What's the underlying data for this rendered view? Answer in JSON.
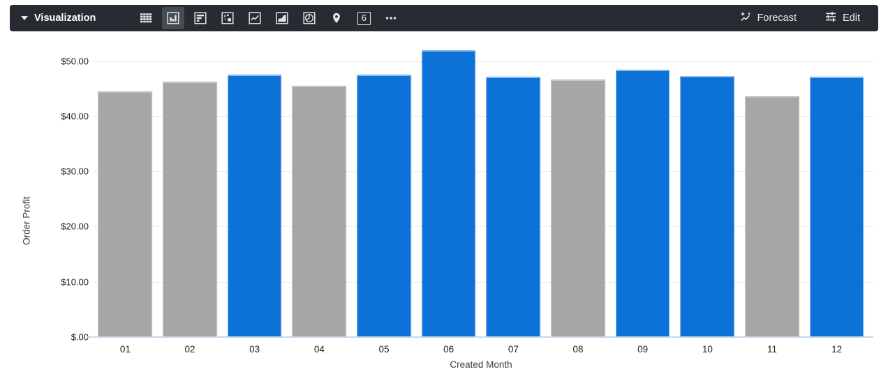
{
  "toolbar": {
    "title": "Visualization",
    "icons": [
      {
        "name": "table-chart-icon",
        "selected": false
      },
      {
        "name": "column-chart-icon",
        "selected": true
      },
      {
        "name": "horizontal-bar-chart-icon",
        "selected": false
      },
      {
        "name": "scatter-chart-icon",
        "selected": false
      },
      {
        "name": "line-chart-icon",
        "selected": false
      },
      {
        "name": "area-chart-icon",
        "selected": false
      },
      {
        "name": "pie-chart-icon",
        "selected": false
      },
      {
        "name": "map-pin-icon",
        "selected": false
      },
      {
        "name": "single-value-icon",
        "selected": false
      },
      {
        "name": "more-options-icon",
        "selected": false
      }
    ],
    "single_value_label": "6",
    "forecast_label": "Forecast",
    "edit_label": "Edit"
  },
  "chart_data": {
    "type": "bar",
    "title": "",
    "xlabel": "Created Month",
    "ylabel": "Order Profit",
    "categories": [
      "01",
      "02",
      "03",
      "04",
      "05",
      "06",
      "07",
      "08",
      "09",
      "10",
      "11",
      "12"
    ],
    "values": [
      44.5,
      46.3,
      47.6,
      45.6,
      47.6,
      52.0,
      47.2,
      46.7,
      48.5,
      47.3,
      43.6,
      47.2
    ],
    "bar_palette": [
      "gray",
      "gray",
      "blue",
      "gray",
      "blue",
      "blue",
      "blue",
      "gray",
      "blue",
      "blue",
      "gray",
      "blue"
    ],
    "palette": {
      "blue": "#0d72d8",
      "blue_edge": "#8fbbee",
      "gray": "#a6a6a6",
      "gray_edge": "#c9c9c9"
    },
    "yticks": [
      {
        "value": 0,
        "label": "$.00"
      },
      {
        "value": 10,
        "label": "$10.00"
      },
      {
        "value": 20,
        "label": "$20.00"
      },
      {
        "value": 30,
        "label": "$30.00"
      },
      {
        "value": 40,
        "label": "$40.00"
      },
      {
        "value": 50,
        "label": "$50.00"
      }
    ],
    "ylim": [
      0,
      53.5
    ],
    "grid": true,
    "legend": "none"
  }
}
